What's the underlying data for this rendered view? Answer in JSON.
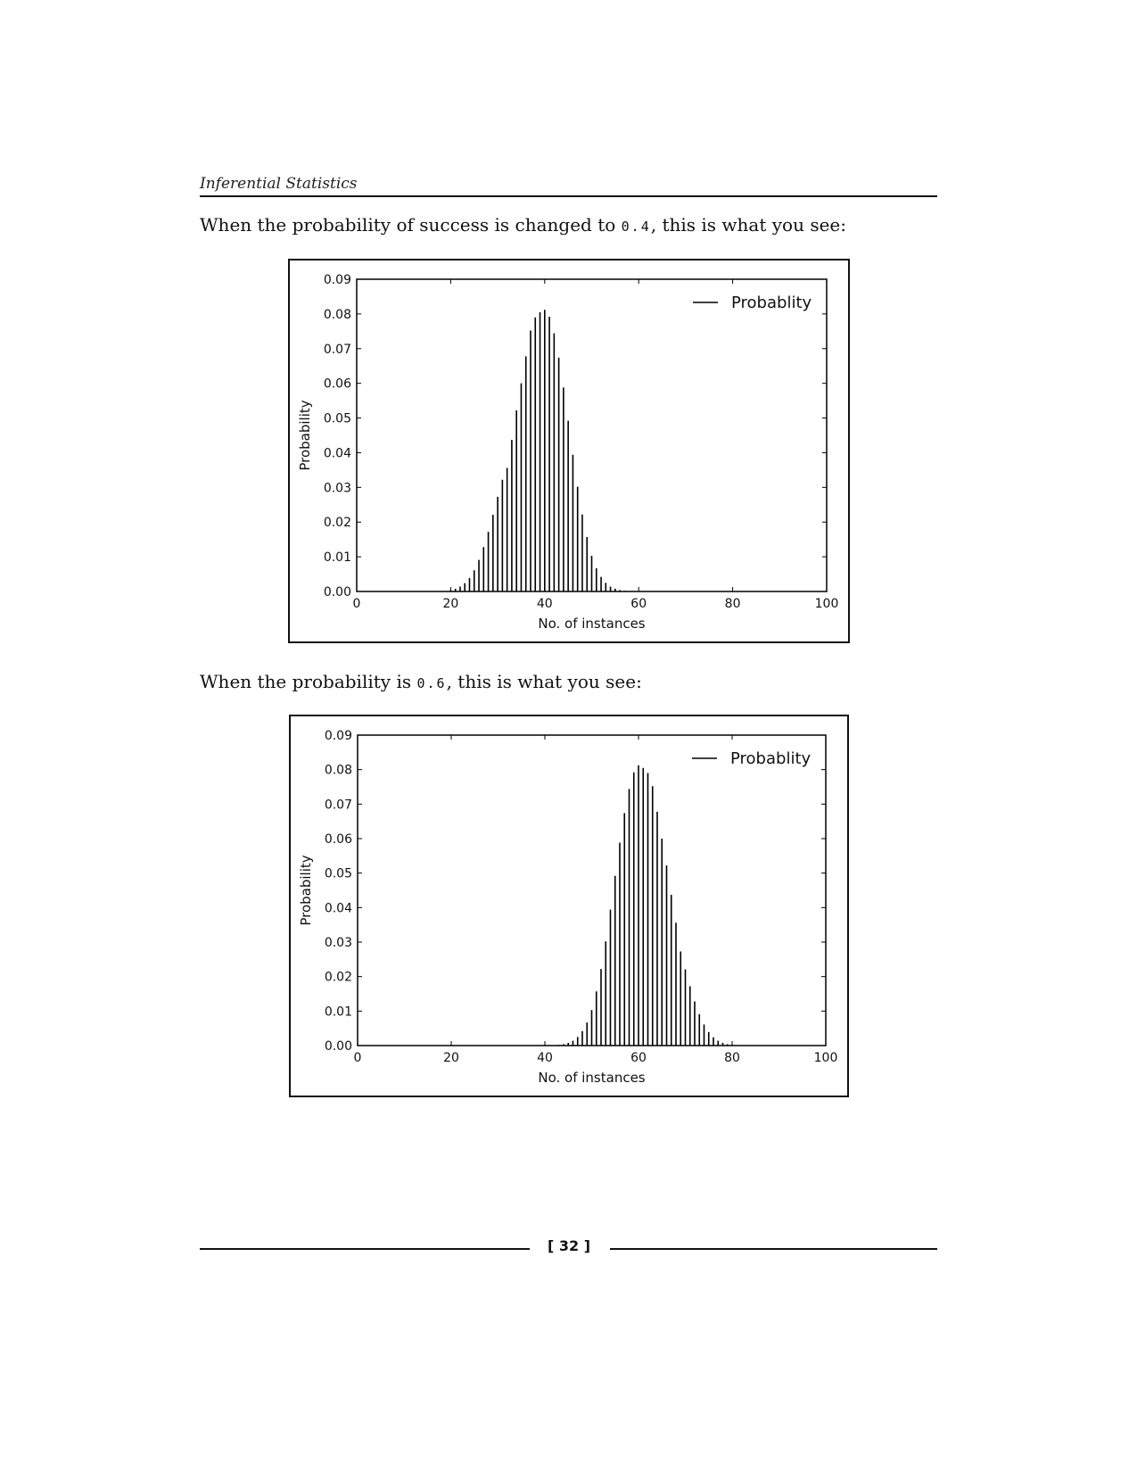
{
  "running_head": "Inferential Statistics",
  "paragraph1": {
    "before": "When the probability of success is changed to ",
    "code": "0.4",
    "after": ", this is what you see:"
  },
  "paragraph2": {
    "before": "When the probability is ",
    "code": "0.6",
    "after": ", this is what you see:"
  },
  "page_number": "[ 32 ]",
  "chart_data": [
    {
      "type": "bar",
      "xlabel": "No. of instances",
      "ylabel": "Probability",
      "legend": [
        "Probablity"
      ],
      "legend_placement": "top-right",
      "xlim": [
        0,
        100
      ],
      "ylim": [
        0,
        0.09
      ],
      "xticks": [
        "0",
        "20",
        "40",
        "60",
        "80",
        "100"
      ],
      "yticks": [
        "0.00",
        "0.01",
        "0.02",
        "0.03",
        "0.04",
        "0.05",
        "0.06",
        "0.07",
        "0.08",
        "0.09"
      ],
      "grid": false,
      "series": [
        {
          "x": [
            20,
            21,
            22,
            23,
            24,
            25,
            26,
            27,
            28,
            29,
            30,
            31,
            32,
            33,
            34,
            35,
            36,
            37,
            38,
            39,
            40,
            41,
            42,
            43,
            44,
            45,
            46,
            47,
            48,
            49,
            50,
            51,
            52,
            53,
            54,
            55,
            56,
            57,
            58,
            59,
            60
          ],
          "values": [
            0.0004,
            0.0008,
            0.0014,
            0.0024,
            0.0039,
            0.0061,
            0.0091,
            0.0128,
            0.0172,
            0.0221,
            0.0273,
            0.0322,
            0.0356,
            0.0437,
            0.0522,
            0.06,
            0.0678,
            0.0752,
            0.079,
            0.0805,
            0.0812,
            0.0792,
            0.0744,
            0.0674,
            0.0588,
            0.0492,
            0.0394,
            0.0302,
            0.0222,
            0.0157,
            0.0103,
            0.0067,
            0.0042,
            0.0025,
            0.0014,
            0.0008,
            0.0004,
            0.0002,
            0.0001,
            5e-05,
            2e-05
          ]
        }
      ]
    },
    {
      "type": "bar",
      "xlabel": "No. of instances",
      "ylabel": "Probability",
      "legend": [
        "Probablity"
      ],
      "legend_placement": "top-right",
      "xlim": [
        0,
        100
      ],
      "ylim": [
        0,
        0.09
      ],
      "xticks": [
        "0",
        "20",
        "40",
        "60",
        "80",
        "100"
      ],
      "yticks": [
        "0.00",
        "0.01",
        "0.02",
        "0.03",
        "0.04",
        "0.05",
        "0.06",
        "0.07",
        "0.08",
        "0.09"
      ],
      "grid": false,
      "series": [
        {
          "x": [
            40,
            41,
            42,
            43,
            44,
            45,
            46,
            47,
            48,
            49,
            50,
            51,
            52,
            53,
            54,
            55,
            56,
            57,
            58,
            59,
            60,
            61,
            62,
            63,
            64,
            65,
            66,
            67,
            68,
            69,
            70,
            71,
            72,
            73,
            74,
            75,
            76,
            77,
            78,
            79,
            80
          ],
          "values": [
            2e-05,
            5e-05,
            0.0001,
            0.0002,
            0.0004,
            0.0008,
            0.0014,
            0.0025,
            0.0042,
            0.0067,
            0.0103,
            0.0157,
            0.0222,
            0.0302,
            0.0394,
            0.0492,
            0.0588,
            0.0674,
            0.0744,
            0.0792,
            0.0812,
            0.0805,
            0.079,
            0.0752,
            0.0678,
            0.06,
            0.0522,
            0.0437,
            0.0356,
            0.0273,
            0.0221,
            0.0172,
            0.0128,
            0.0091,
            0.0061,
            0.0039,
            0.0024,
            0.0014,
            0.0008,
            0.0004,
            0.0002
          ]
        }
      ]
    }
  ]
}
